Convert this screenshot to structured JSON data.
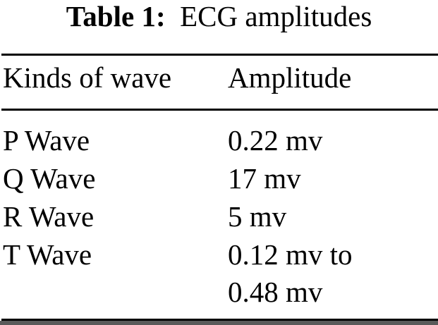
{
  "caption": {
    "label": "Table 1:",
    "text": "ECG amplitudes"
  },
  "table": {
    "headers": [
      "Kinds of wave",
      "Amplitude"
    ],
    "rows": [
      {
        "wave": "P Wave",
        "amplitude": "0.22 mv"
      },
      {
        "wave": "Q Wave",
        "amplitude": "17 mv"
      },
      {
        "wave": "R Wave",
        "amplitude": "5 mv"
      },
      {
        "wave": "T Wave",
        "amplitude": "0.12 mv to",
        "amplitude_cont": "0.48 mv"
      }
    ]
  }
}
